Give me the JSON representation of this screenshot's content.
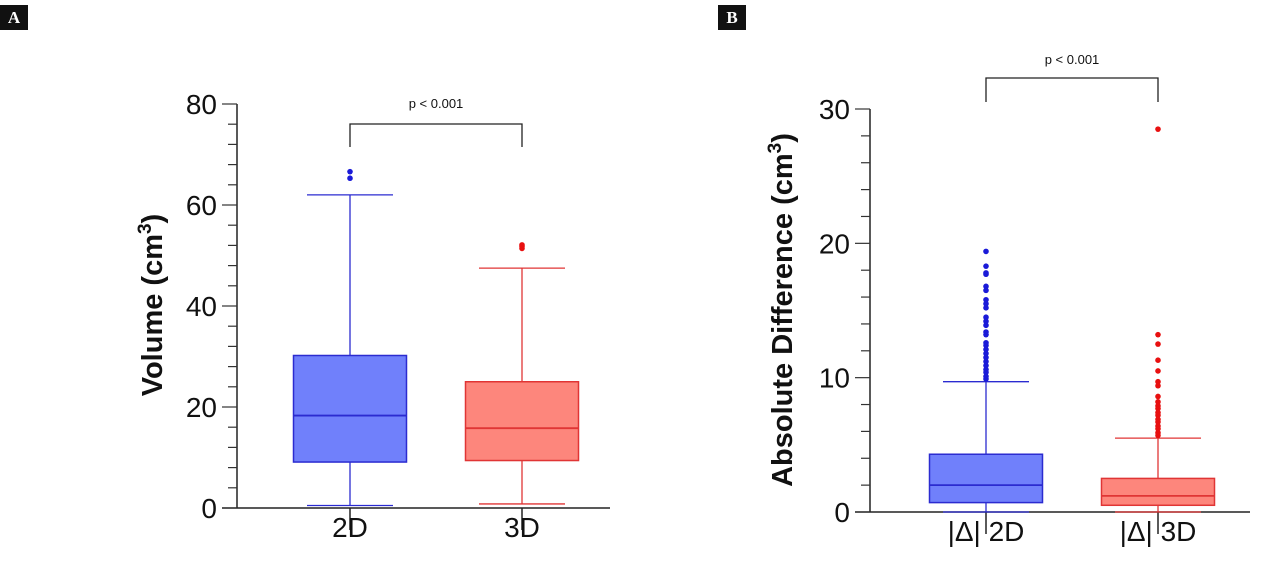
{
  "chart_data": [
    {
      "panel": "A",
      "type": "box",
      "ylabel": "Volume (cm",
      "ylabel_sup": "3",
      "ylabel_end": ")",
      "ylim": [
        0,
        80
      ],
      "yticks": [
        0,
        20,
        40,
        60,
        80
      ],
      "minor_tick_step": 4,
      "categories": [
        "2D",
        "3D"
      ],
      "series": [
        {
          "category": "2D",
          "min": 0.5,
          "q1": 9.1,
          "median": 18.3,
          "q3": 30.2,
          "max": 62,
          "outliers": [
            65.3,
            66.6
          ],
          "fill": "#7080fb",
          "stroke": "#2b2bd0",
          "outlier_color": "#1a1ad8"
        },
        {
          "category": "3D",
          "min": 0.8,
          "q1": 9.4,
          "median": 15.8,
          "q3": 25.0,
          "max": 47.5,
          "outliers": [
            51.4,
            51.8,
            52.1
          ],
          "fill": "#fd867c",
          "stroke": "#e03535",
          "outlier_color": "#e81010"
        }
      ],
      "annotation": "p < 0.001"
    },
    {
      "panel": "B",
      "type": "box",
      "ylabel": "Absolute Difference (cm",
      "ylabel_sup": "3",
      "ylabel_end": ")",
      "ylim": [
        0,
        30
      ],
      "yticks": [
        0,
        10,
        20,
        30
      ],
      "minor_tick_step": 2,
      "categories": [
        "|Δ| 2D",
        "|Δ| 3D"
      ],
      "series": [
        {
          "category": "|Δ| 2D",
          "min": 0,
          "q1": 0.7,
          "median": 2.0,
          "q3": 4.3,
          "max": 9.7,
          "outliers": [
            19.4,
            18.3,
            17.8,
            17.7,
            16.8,
            16.5,
            15.8,
            15.5,
            15.2,
            14.5,
            14.2,
            13.9,
            13.4,
            13.2,
            12.6,
            12.4,
            12.1,
            11.8,
            11.5,
            11.2,
            10.9,
            10.6,
            10.4,
            10.1,
            9.9
          ],
          "fill": "#7080fb",
          "stroke": "#2b2bd0",
          "outlier_color": "#1a1ad8"
        },
        {
          "category": "|Δ| 3D",
          "min": 0,
          "q1": 0.5,
          "median": 1.2,
          "q3": 2.5,
          "max": 5.5,
          "outliers": [
            28.5,
            13.2,
            12.5,
            11.3,
            10.5,
            9.7,
            9.4,
            8.6,
            8.2,
            7.9,
            7.7,
            7.4,
            7.2,
            6.9,
            6.7,
            6.4,
            6.2,
            5.9,
            5.7
          ],
          "fill": "#fd867c",
          "stroke": "#e03535",
          "outlier_color": "#e81010"
        }
      ],
      "annotation": "p < 0.001"
    }
  ]
}
